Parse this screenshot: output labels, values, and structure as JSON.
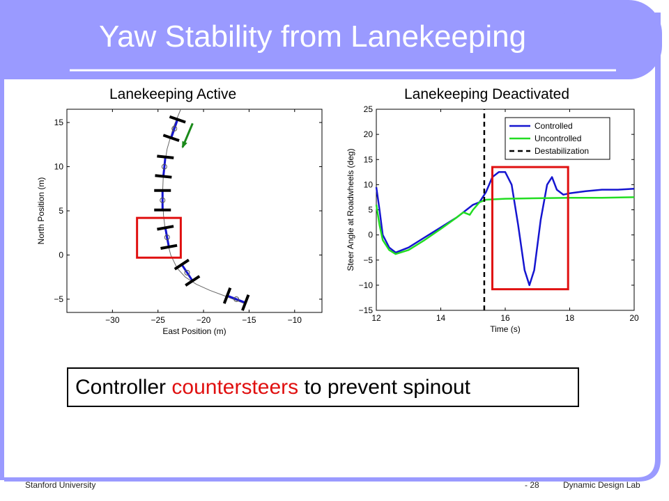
{
  "slide": {
    "title": "Yaw Stability from Lanekeeping",
    "callout": {
      "part1": "Controller",
      "part2": "countersteers",
      "part3": "to prevent spinout"
    },
    "footer": {
      "left": "Stanford University",
      "page": "- 28",
      "right": "Dynamic Design Lab"
    },
    "colors": {
      "theme": "#9a9aff",
      "highlight_box": "#e01010",
      "arrow": "#1a8a1a"
    }
  },
  "chart_data": [
    {
      "type": "scatter",
      "title": "Lanekeeping Active",
      "xlabel": "East Position (m)",
      "ylabel": "North Position (m)",
      "xlim": [
        -35,
        -7
      ],
      "ylim": [
        -6.5,
        16.5
      ],
      "xticks": [
        -30,
        -25,
        -20,
        -15,
        -10
      ],
      "yticks": [
        -5,
        0,
        5,
        10,
        15
      ],
      "path": {
        "x": [
          -22.5,
          -23.3,
          -24.0,
          -24.4,
          -24.5,
          -24.4,
          -24.1,
          -23.6,
          -22.9,
          -22.0,
          -20.8,
          -19.3,
          -17.5,
          -15.5
        ],
        "y": [
          16.5,
          14.5,
          12.0,
          9.5,
          7.0,
          4.5,
          2.0,
          0.0,
          -1.5,
          -2.5,
          -3.3,
          -4.0,
          -4.7,
          -5.5
        ]
      },
      "vehicles": [
        {
          "x": -23.2,
          "y": 14.3
        },
        {
          "x": -24.3,
          "y": 10.0
        },
        {
          "x": -24.5,
          "y": 6.2
        },
        {
          "x": -24.0,
          "y": 2.0
        },
        {
          "x": -21.8,
          "y": -2.0
        },
        {
          "x": -16.4,
          "y": -5.0
        }
      ],
      "highlight": {
        "x": [
          -27.3,
          -22.5
        ],
        "y": [
          -0.3,
          4.2
        ]
      }
    },
    {
      "type": "line",
      "title": "Lanekeeping Deactivated",
      "xlabel": "Time (s)",
      "ylabel": "Steer Angle at Roadwheels (deg)",
      "xlim": [
        12,
        20
      ],
      "ylim": [
        -15,
        25
      ],
      "xticks": [
        12,
        14,
        16,
        18,
        20
      ],
      "yticks": [
        -15,
        -10,
        -5,
        0,
        5,
        10,
        15,
        20,
        25
      ],
      "legend_position": "top-right",
      "series": [
        {
          "name": "Controlled",
          "color": "#1515d0",
          "x": [
            12.0,
            12.1,
            12.2,
            12.4,
            12.6,
            13.0,
            13.5,
            14.0,
            14.5,
            14.8,
            15.0,
            15.2,
            15.4,
            15.6,
            15.8,
            16.0,
            16.2,
            16.4,
            16.6,
            16.75,
            16.9,
            17.1,
            17.3,
            17.45,
            17.6,
            17.8,
            18.0,
            18.5,
            19.0,
            19.5,
            20.0
          ],
          "y": [
            9.5,
            5.0,
            0.0,
            -2.5,
            -3.5,
            -2.5,
            -0.5,
            1.5,
            3.5,
            5.0,
            6.0,
            6.5,
            8.5,
            11.5,
            12.5,
            12.5,
            10.0,
            2.0,
            -7.0,
            -10.0,
            -7.0,
            3.0,
            10.0,
            11.5,
            9.0,
            8.0,
            8.3,
            8.7,
            9.0,
            9.0,
            9.2
          ]
        },
        {
          "name": "Uncontrolled",
          "color": "#22dd22",
          "x": [
            12.0,
            12.1,
            12.2,
            12.4,
            12.6,
            13.0,
            13.5,
            14.0,
            14.5,
            14.7,
            14.9,
            15.0,
            15.2,
            15.4,
            16.0,
            17.0,
            18.0,
            19.0,
            20.0
          ],
          "y": [
            6.0,
            2.0,
            -1.0,
            -3.0,
            -3.8,
            -3.0,
            -1.0,
            1.2,
            3.5,
            4.5,
            4.0,
            5.0,
            6.5,
            7.0,
            7.2,
            7.3,
            7.4,
            7.4,
            7.5
          ]
        },
        {
          "name": "Destabilization",
          "color": "#000000",
          "dashed": true,
          "x": [
            15.35,
            15.35
          ],
          "y": [
            -15,
            25
          ]
        }
      ],
      "highlight": {
        "x": [
          15.6,
          17.95
        ],
        "y": [
          -10.8,
          13.5
        ]
      }
    }
  ]
}
